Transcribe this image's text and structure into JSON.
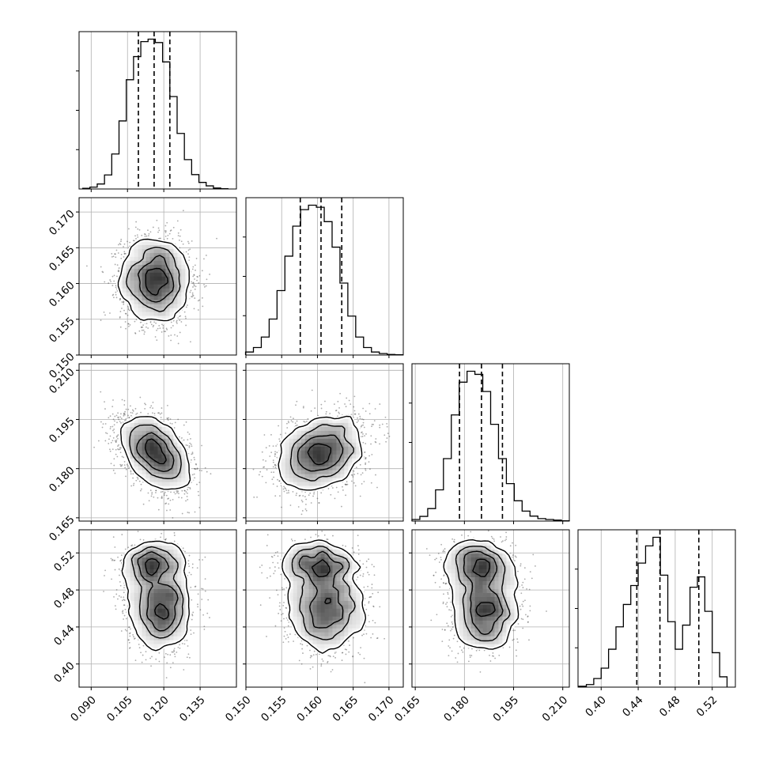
{
  "chart_data": {
    "type": "corner",
    "grid": true,
    "hist_bins": 20,
    "density_levels": 4,
    "parameters": [
      {
        "range": [
          0.085,
          0.15
        ],
        "ticks": [
          0.09,
          0.105,
          0.12,
          0.135
        ],
        "tick_labels": [
          "0.090",
          "0.105",
          "0.120",
          "0.135"
        ],
        "quantiles": [
          0.1095,
          0.116,
          0.1225
        ],
        "hist_x": [
          0.088,
          0.091,
          0.094,
          0.097,
          0.1,
          0.103,
          0.106,
          0.109,
          0.112,
          0.115,
          0.118,
          0.121,
          0.124,
          0.127,
          0.13,
          0.133,
          0.136,
          0.139,
          0.142,
          0.145
        ],
        "hist_counts": [
          0.2,
          0.6,
          1.6,
          4.5,
          11.2,
          21.8,
          35.0,
          42.4,
          47.2,
          48.0,
          46.9,
          40.7,
          29.6,
          17.8,
          9.4,
          4.6,
          2.1,
          1.0,
          0.3,
          0.1
        ],
        "modes": [
          {
            "mean": 0.1165,
            "sd": 0.007,
            "weight": 1.0
          }
        ]
      },
      {
        "range": [
          0.15,
          0.172
        ],
        "ticks": [
          0.15,
          0.155,
          0.16,
          0.165,
          0.17
        ],
        "tick_labels": [
          "0.150",
          "0.155",
          "0.160",
          "0.165",
          "0.170"
        ],
        "quantiles": [
          0.1576,
          0.1605,
          0.1634
        ],
        "hist_x": [
          0.1505,
          0.1516,
          0.1527,
          0.1538,
          0.1549,
          0.156,
          0.1571,
          0.1582,
          0.1593,
          0.1604,
          0.1615,
          0.1626,
          0.1637,
          0.1648,
          0.1659,
          0.167,
          0.1681,
          0.1692,
          0.1703,
          0.1714
        ],
        "hist_counts": [
          1.0,
          2.5,
          6.0,
          12.0,
          21.5,
          33.0,
          43.0,
          48.5,
          50.0,
          49.3,
          44.5,
          36.0,
          24.0,
          13.0,
          6.0,
          2.5,
          1.0,
          0.5,
          0.2,
          0.1
        ],
        "modes": [
          {
            "mean": 0.1605,
            "sd": 0.0029,
            "weight": 1.0
          }
        ]
      },
      {
        "range": [
          0.164,
          0.212
        ],
        "ticks": [
          0.165,
          0.18,
          0.195,
          0.21
        ],
        "tick_labels": [
          "0.165",
          "0.180",
          "0.195",
          "0.210"
        ],
        "quantiles": [
          0.1785,
          0.1852,
          0.1916
        ],
        "hist_x": [
          0.1652,
          0.1676,
          0.17,
          0.1724,
          0.1748,
          0.1772,
          0.1796,
          0.182,
          0.1844,
          0.1868,
          0.1892,
          0.1916,
          0.194,
          0.1964,
          0.1988,
          0.2012,
          0.2036,
          0.206,
          0.2084,
          0.2108
        ],
        "hist_counts": [
          0.5,
          1.5,
          4.0,
          10.0,
          20.0,
          34.0,
          44.5,
          48.0,
          47.0,
          41.5,
          31.0,
          20.0,
          12.0,
          6.5,
          3.2,
          1.6,
          0.8,
          0.5,
          0.3,
          0.1
        ],
        "modes": [
          {
            "mean": 0.1848,
            "sd": 0.0055,
            "weight": 1.0
          }
        ]
      },
      {
        "range": [
          0.375,
          0.545
        ],
        "ticks": [
          0.4,
          0.44,
          0.48,
          0.52
        ],
        "tick_labels": [
          "0.40",
          "0.44",
          "0.48",
          "0.52"
        ],
        "quantiles": [
          0.4385,
          0.4635,
          0.5055
        ],
        "hist_x": [
          0.38,
          0.388,
          0.396,
          0.404,
          0.412,
          0.42,
          0.428,
          0.436,
          0.444,
          0.452,
          0.46,
          0.468,
          0.476,
          0.484,
          0.492,
          0.5,
          0.508,
          0.516,
          0.524,
          0.532
        ],
        "hist_counts": [
          0.5,
          1.5,
          5.0,
          11.0,
          22.0,
          35.0,
          48.0,
          59.0,
          72.0,
          82.0,
          87.0,
          65.0,
          38.0,
          22.0,
          36.0,
          58.0,
          64.0,
          44.0,
          20.0,
          6.0
        ],
        "modes": [
          {
            "mean": 0.46,
            "sd": 0.022,
            "weight": 0.66
          },
          {
            "mean": 0.508,
            "sd": 0.012,
            "weight": 0.34
          }
        ]
      }
    ],
    "pairs": [
      {
        "row": 1,
        "col": 0,
        "correlation": -0.05
      },
      {
        "row": 2,
        "col": 0,
        "correlation": -0.45
      },
      {
        "row": 2,
        "col": 1,
        "correlation": 0.3
      },
      {
        "row": 3,
        "col": 0,
        "correlation": 0.0
      },
      {
        "row": 3,
        "col": 1,
        "correlation": 0.0
      },
      {
        "row": 3,
        "col": 2,
        "correlation": 0.0
      }
    ]
  }
}
